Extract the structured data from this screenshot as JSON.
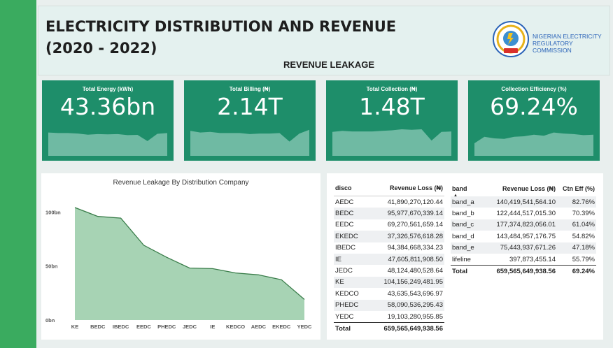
{
  "header": {
    "title_line1": "ELECTRICITY DISTRIBUTION AND REVENUE",
    "title_line2": "(2020 - 2022)",
    "subheading": "REVENUE LEAKAGE",
    "org_line1": "NIGERIAN ELECTRICITY",
    "org_line2": "REGULATORY COMMISSION",
    "logo_text": "NERC"
  },
  "kpis": [
    {
      "label": "Total Energy (kWh)",
      "value": "43.36bn"
    },
    {
      "label": "Total Billing (₦)",
      "value": "2.14T"
    },
    {
      "label": "Total Collection (₦)",
      "value": "1.48T"
    },
    {
      "label": "Collection Efficiency (%)",
      "value": "69.24%"
    }
  ],
  "colors": {
    "sidebar": "#3aab5f",
    "kpi_bg": "#1e8e6a",
    "sparkline": "#6fbaa3",
    "area_fill": "#a7d3b4",
    "area_line": "#3a7d4a"
  },
  "chart_data": {
    "type": "area",
    "title": "Revenue Leakage By Distribution Company",
    "categories": [
      "KE",
      "BEDC",
      "IBEDC",
      "EEDC",
      "PHEDC",
      "JEDC",
      "IE",
      "KEDCO",
      "AEDC",
      "EKEDC",
      "YEDC"
    ],
    "values": [
      104.16,
      95.98,
      94.38,
      69.27,
      58.09,
      48.12,
      47.61,
      43.64,
      41.89,
      37.33,
      19.1
    ],
    "ylim": [
      0,
      110
    ],
    "yticks": [
      {
        "v": 0,
        "label": "0bn"
      },
      {
        "v": 50,
        "label": "50bn"
      },
      {
        "v": 100,
        "label": "100bn"
      }
    ],
    "grid": false
  },
  "disco_table": {
    "headers": [
      "disco",
      "Revenue Loss (₦)"
    ],
    "rows": [
      [
        "AEDC",
        "41,890,270,120.44"
      ],
      [
        "BEDC",
        "95,977,670,339.14"
      ],
      [
        "EEDC",
        "69,270,561,659.14"
      ],
      [
        "EKEDC",
        "37,326,576,618.28"
      ],
      [
        "IBEDC",
        "94,384,668,334.23"
      ],
      [
        "IE",
        "47,605,811,908.50"
      ],
      [
        "JEDC",
        "48,124,480,528.64"
      ],
      [
        "KE",
        "104,156,249,481.95"
      ],
      [
        "KEDCO",
        "43,635,543,696.97"
      ],
      [
        "PHEDC",
        "58,090,536,295.43"
      ],
      [
        "YEDC",
        "19,103,280,955.85"
      ]
    ],
    "total": [
      "Total",
      "659,565,649,938.56"
    ]
  },
  "band_table": {
    "headers": [
      "band",
      "Revenue Loss (₦)",
      "Ctn Eff (%)"
    ],
    "sort_indicator": "▲",
    "rows": [
      [
        "band_a",
        "140,419,541,564.10",
        "82.76%"
      ],
      [
        "band_b",
        "122,444,517,015.30",
        "70.39%"
      ],
      [
        "band_c",
        "177,374,823,056.01",
        "61.04%"
      ],
      [
        "band_d",
        "143,484,957,176.75",
        "54.82%"
      ],
      [
        "band_e",
        "75,443,937,671.26",
        "47.18%"
      ],
      [
        "lifeline",
        "397,873,455.14",
        "55.79%"
      ]
    ],
    "total": [
      "Total",
      "659,565,649,938.56",
      "69.24%"
    ]
  }
}
